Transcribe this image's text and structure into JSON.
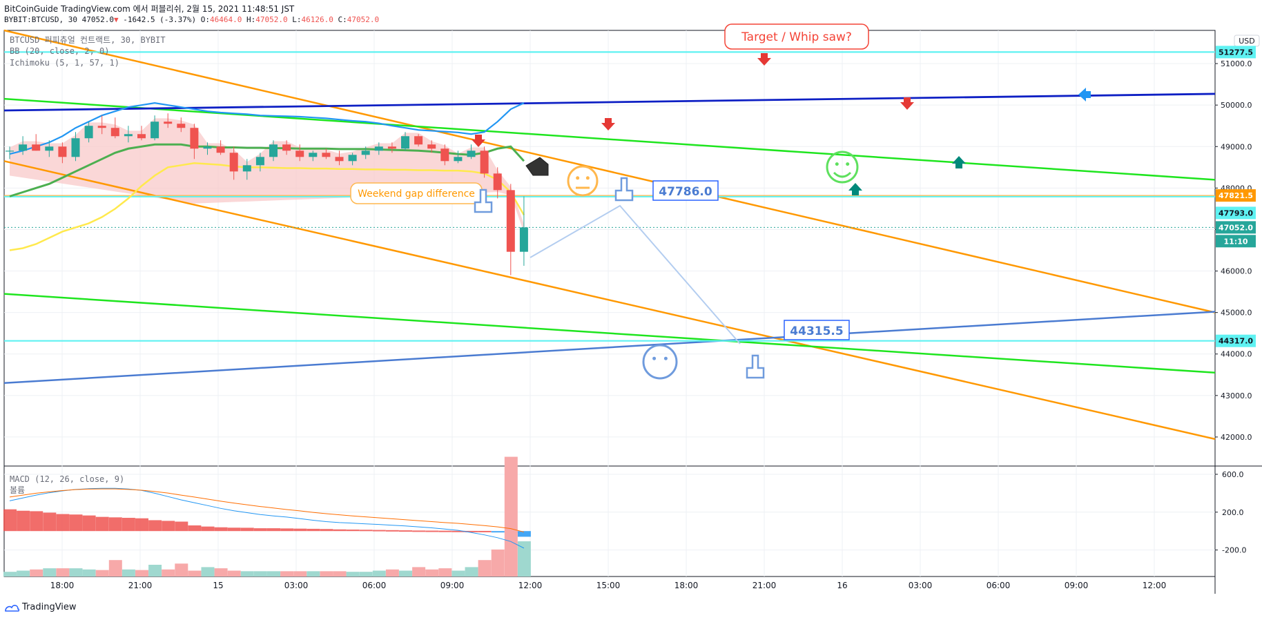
{
  "header": {
    "line1": "BitCoinGuide TradingView.com 에서 퍼블리쉬, 2월 15, 2021 11:48:51 JST",
    "symbol": "BYBIT:BTCUSD, 30",
    "last": "47052.0",
    "arrow": "▼",
    "change": "-1642.5 (-3.37%)",
    "o_label": "O:",
    "o": "46464.0",
    "h_label": "H:",
    "h": "47052.0",
    "l_label": "L:",
    "l": "46126.0",
    "c_label": "C:",
    "c": "47052.0"
  },
  "legend": {
    "title": "BTCUSD 퍼피츄얼 컨트랙트, 30, BYBIT",
    "bb": "BB (20, close, 2, 0)",
    "ichimoku": "Ichimoku (5, 1, 57, 1)",
    "macd": "MACD (12, 26, close, 9)",
    "hist": "볼륨"
  },
  "footer": {
    "brand": "TradingView"
  },
  "currency": "USD",
  "annotations": {
    "target": "Target / Whip saw?",
    "weekend": "Weekend gap difference",
    "label1": "47786.0",
    "label2": "44315.5"
  },
  "colors": {
    "up": "#26a69a",
    "down": "#ef5350",
    "green_line": "#1ee51e",
    "orange_line": "#ff9800",
    "blue_line": "#0d1fc4",
    "cyan_line": "#5ff2f2",
    "bb_basis": "#2196f3",
    "ichimoku_yellow": "#ffe94d",
    "kumo": "#f8c9c9",
    "macd_line": "#2196f3",
    "signal_line": "#ff6d00"
  },
  "chart_data": [
    {
      "type": "candlestick",
      "title": "BTCUSD 퍼피츄얼 컨트랙트, 30, BYBIT",
      "y_ticks": [
        42000,
        43000,
        44000,
        45000,
        46000,
        47000,
        48000,
        49000,
        50000,
        51000
      ],
      "ylim": [
        41300,
        51800
      ],
      "x_ticks": [
        "18:00",
        "21:00",
        "15",
        "03:00",
        "06:00",
        "09:00",
        "12:00",
        "15:00",
        "18:00",
        "21:00",
        "16",
        "03:00",
        "06:00",
        "09:00",
        "12:00"
      ],
      "price_labels": [
        {
          "value": "51277.5",
          "style": "cyan"
        },
        {
          "value": "47821.5",
          "style": "orange"
        },
        {
          "value": "47793.0",
          "style": "cyan"
        },
        {
          "value": "47052.0",
          "style": "green"
        },
        {
          "value": "11:10",
          "style": "green"
        },
        {
          "value": "44317.0",
          "style": "cyan"
        }
      ],
      "candles": [
        {
          "o": 48880,
          "h": 49000,
          "l": 48700,
          "c": 48900
        },
        {
          "o": 48900,
          "h": 49250,
          "l": 48800,
          "c": 49050
        },
        {
          "o": 49050,
          "h": 49300,
          "l": 48900,
          "c": 48900
        },
        {
          "o": 48900,
          "h": 49150,
          "l": 48750,
          "c": 49000
        },
        {
          "o": 49000,
          "h": 49100,
          "l": 48600,
          "c": 48750
        },
        {
          "o": 48750,
          "h": 49350,
          "l": 48650,
          "c": 49200
        },
        {
          "o": 49200,
          "h": 49600,
          "l": 49100,
          "c": 49500
        },
        {
          "o": 49500,
          "h": 49750,
          "l": 49300,
          "c": 49450
        },
        {
          "o": 49450,
          "h": 49700,
          "l": 49200,
          "c": 49250
        },
        {
          "o": 49250,
          "h": 49500,
          "l": 49100,
          "c": 49300
        },
        {
          "o": 49300,
          "h": 49500,
          "l": 49150,
          "c": 49200
        },
        {
          "o": 49200,
          "h": 49750,
          "l": 49150,
          "c": 49600
        },
        {
          "o": 49600,
          "h": 49800,
          "l": 49450,
          "c": 49550
        },
        {
          "o": 49550,
          "h": 49700,
          "l": 49350,
          "c": 49450
        },
        {
          "o": 49450,
          "h": 49550,
          "l": 48700,
          "c": 48950
        },
        {
          "o": 48950,
          "h": 49100,
          "l": 48800,
          "c": 49000
        },
        {
          "o": 49000,
          "h": 49150,
          "l": 48800,
          "c": 48850
        },
        {
          "o": 48850,
          "h": 49000,
          "l": 48200,
          "c": 48400
        },
        {
          "o": 48400,
          "h": 48700,
          "l": 48200,
          "c": 48550
        },
        {
          "o": 48550,
          "h": 48850,
          "l": 48400,
          "c": 48750
        },
        {
          "o": 48750,
          "h": 49150,
          "l": 48650,
          "c": 49050
        },
        {
          "o": 49050,
          "h": 49150,
          "l": 48800,
          "c": 48900
        },
        {
          "o": 48900,
          "h": 49050,
          "l": 48650,
          "c": 48750
        },
        {
          "o": 48750,
          "h": 48900,
          "l": 48650,
          "c": 48850
        },
        {
          "o": 48850,
          "h": 48950,
          "l": 48700,
          "c": 48750
        },
        {
          "o": 48750,
          "h": 48900,
          "l": 48550,
          "c": 48650
        },
        {
          "o": 48650,
          "h": 48850,
          "l": 48550,
          "c": 48800
        },
        {
          "o": 48800,
          "h": 49000,
          "l": 48700,
          "c": 48900
        },
        {
          "o": 48900,
          "h": 49100,
          "l": 48800,
          "c": 49000
        },
        {
          "o": 49000,
          "h": 49100,
          "l": 48850,
          "c": 48950
        },
        {
          "o": 48950,
          "h": 49350,
          "l": 48900,
          "c": 49250
        },
        {
          "o": 49250,
          "h": 49300,
          "l": 49000,
          "c": 49050
        },
        {
          "o": 49050,
          "h": 49150,
          "l": 48850,
          "c": 48950
        },
        {
          "o": 48950,
          "h": 49050,
          "l": 48550,
          "c": 48650
        },
        {
          "o": 48650,
          "h": 48900,
          "l": 48600,
          "c": 48750
        },
        {
          "o": 48750,
          "h": 49050,
          "l": 48700,
          "c": 48900
        },
        {
          "o": 48900,
          "h": 49000,
          "l": 48250,
          "c": 48350
        },
        {
          "o": 48350,
          "h": 48500,
          "l": 47750,
          "c": 47950
        },
        {
          "o": 47950,
          "h": 48100,
          "l": 45900,
          "c": 46464
        },
        {
          "o": 46464,
          "h": 47800,
          "l": 46126,
          "c": 47052
        }
      ],
      "macd": {
        "y_ticks": [
          600,
          200,
          -200
        ],
        "ylim": [
          -480,
          680
        ],
        "hist": [
          230,
          215,
          210,
          195,
          180,
          175,
          165,
          150,
          145,
          140,
          135,
          115,
          108,
          100,
          60,
          48,
          40,
          36,
          35,
          30,
          30,
          28,
          26,
          24,
          22,
          18,
          16,
          14,
          12,
          10,
          8,
          6,
          5,
          4,
          3,
          2,
          2,
          -2,
          -10,
          -60
        ],
        "macd": [
          320,
          350,
          380,
          405,
          425,
          440,
          448,
          452,
          452,
          445,
          430,
          400,
          365,
          330,
          300,
          270,
          240,
          215,
          195,
          175,
          160,
          148,
          132,
          115,
          100,
          90,
          84,
          76,
          70,
          62,
          54,
          44,
          34,
          22,
          8,
          -15,
          -40,
          -70,
          -110,
          -180
        ],
        "signal": [
          360,
          380,
          400,
          415,
          428,
          438,
          444,
          446,
          446,
          440,
          432,
          418,
          402,
          380,
          360,
          338,
          316,
          296,
          278,
          260,
          244,
          228,
          214,
          198,
          184,
          172,
          160,
          150,
          140,
          130,
          120,
          110,
          100,
          90,
          82,
          70,
          58,
          44,
          26,
          -10
        ]
      }
    }
  ]
}
